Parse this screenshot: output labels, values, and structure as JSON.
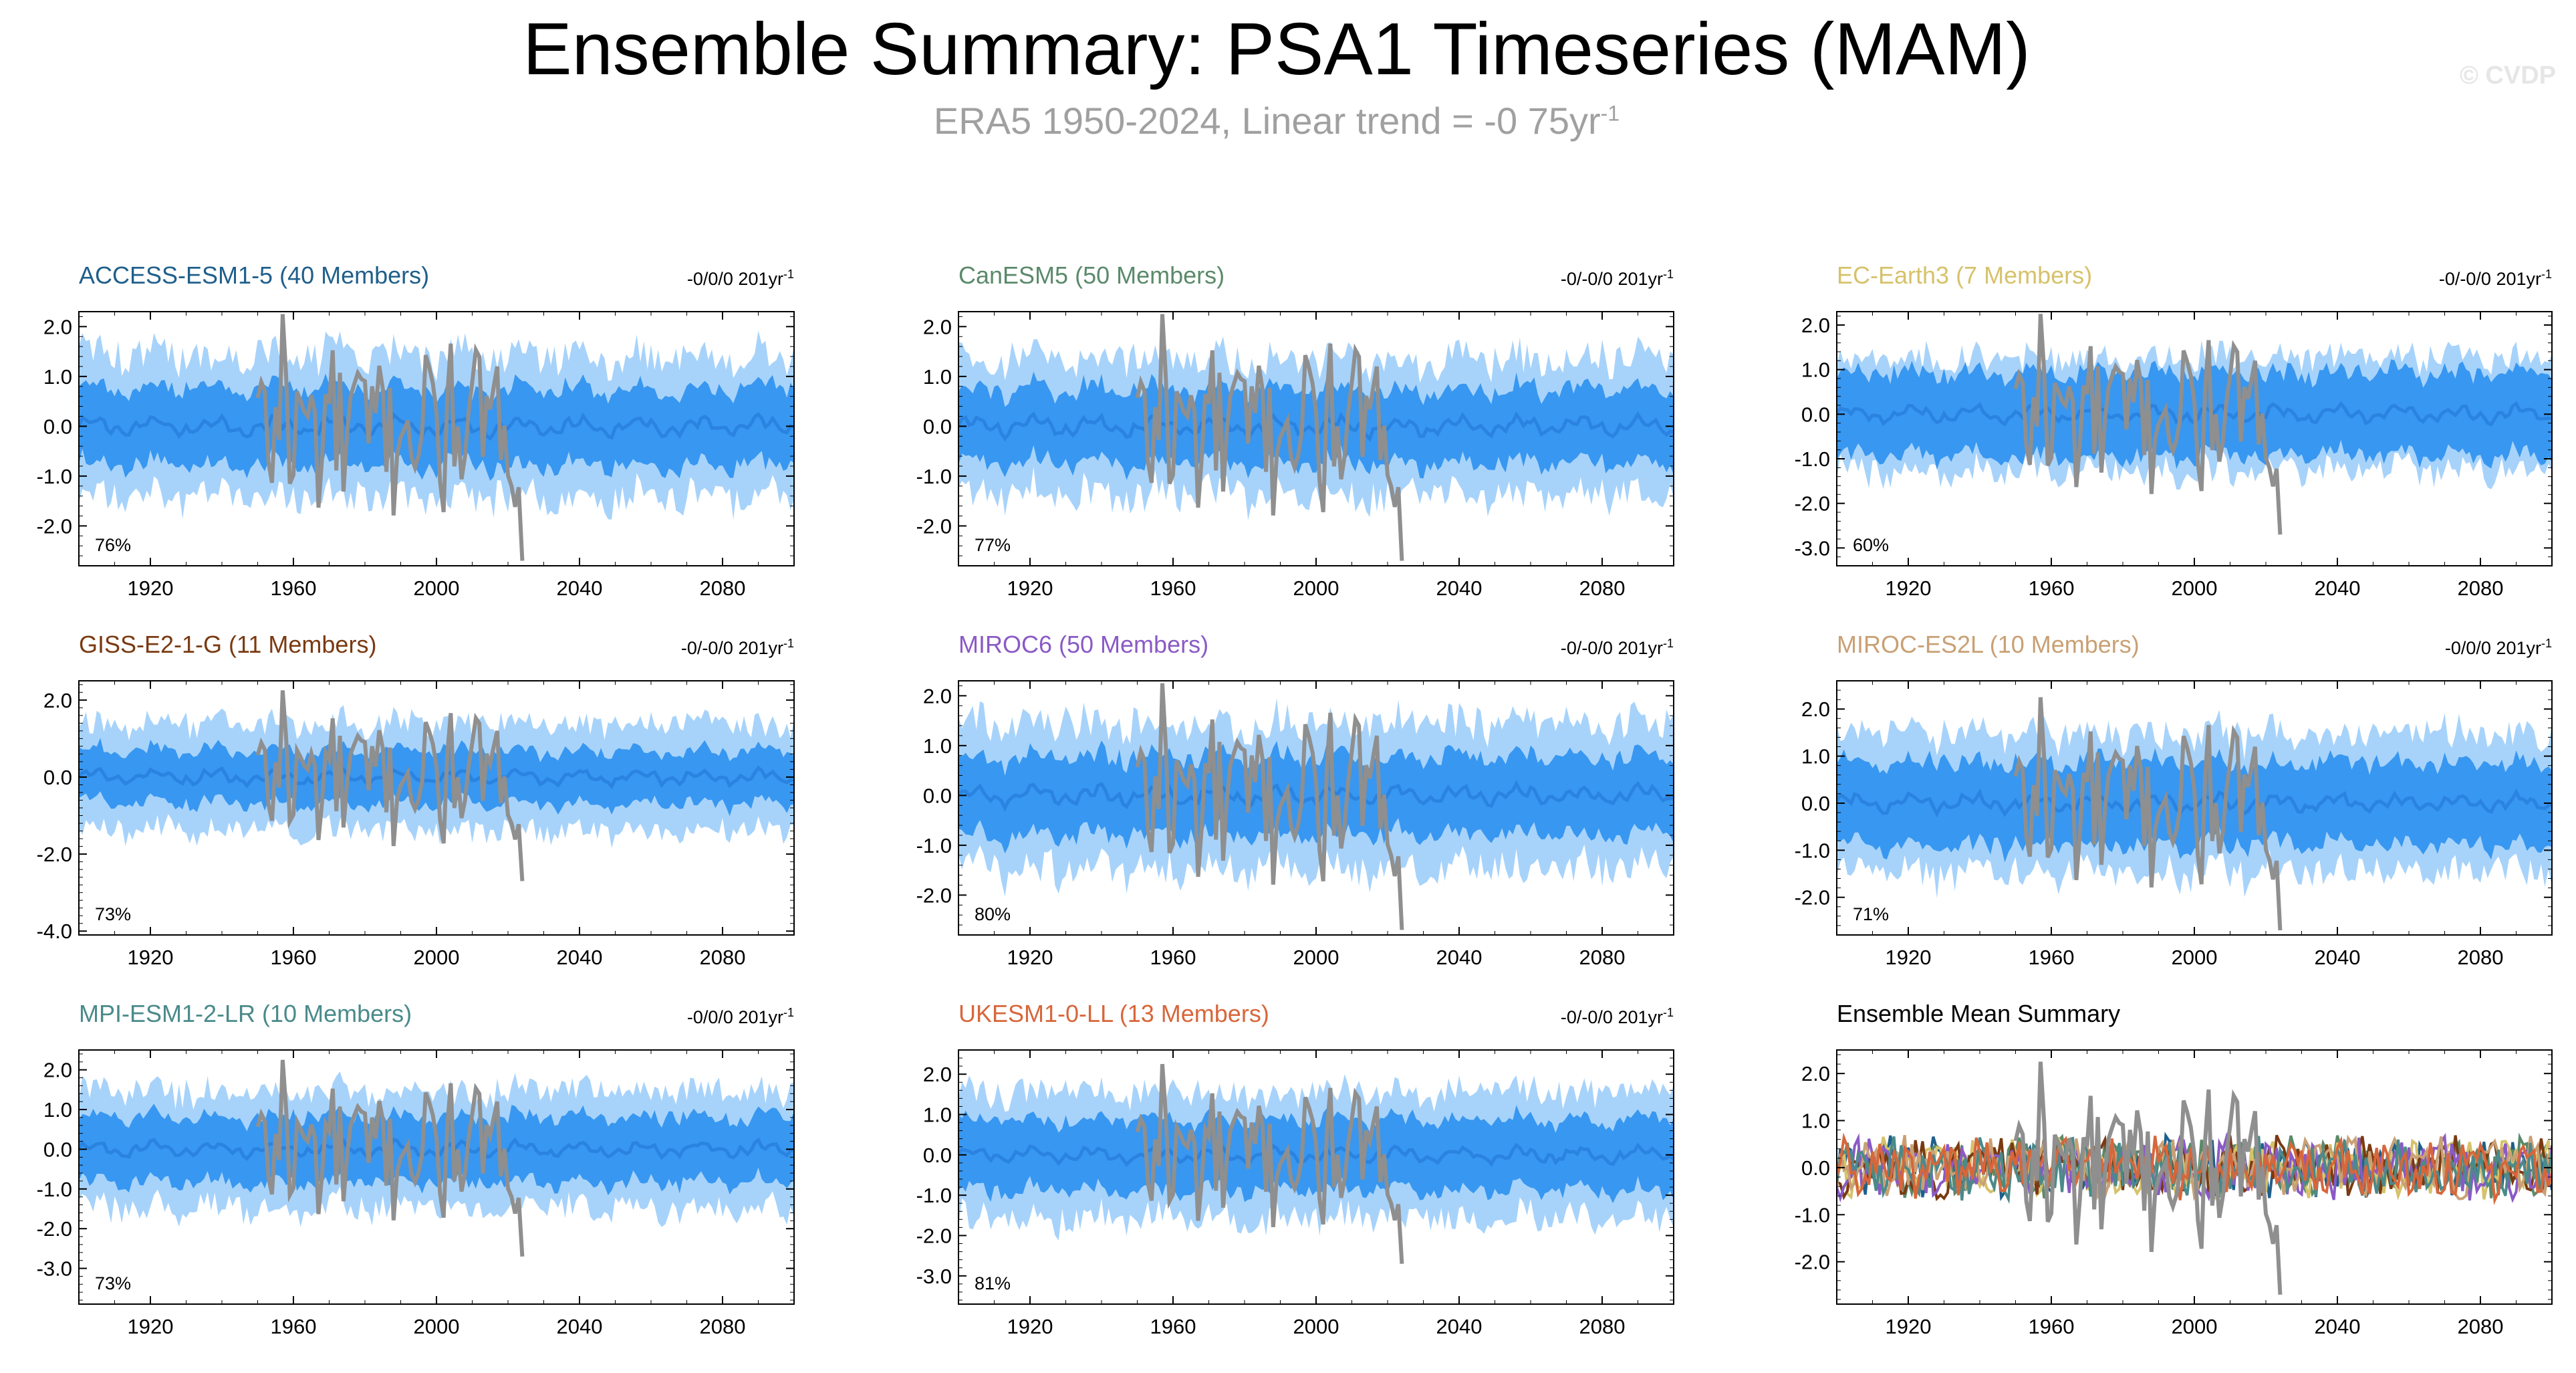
{
  "title": "Ensemble Summary: PSA1 Timeseries (MAM)",
  "subtitle": {
    "text": "ERA5 1950-2024, Linear trend = -0 75yr",
    "superscript": "-1"
  },
  "watermark": "© CVDP",
  "colors": {
    "band_outer": "#a7d3fb",
    "band_inner": "#3897f0",
    "ensemble_mean": "#2a83e0",
    "observations": "#8f8f8f"
  },
  "chart_data": [
    {
      "type": "area",
      "name": "ACCESS-ESM1-5 (40 Members)",
      "title_color": "#1f5f8b",
      "trend": "-0/0/0 201yr",
      "trend_sup": "-1",
      "percent": "76%",
      "ylim": [
        -2.8,
        2.3
      ],
      "yticks": [
        "2.0",
        "1.0",
        "0.0",
        "-1.0",
        "-2.0"
      ],
      "ytick_values": [
        2,
        1,
        0,
        -1,
        -2
      ],
      "xlim": [
        1900,
        2100
      ],
      "xticks": [
        "1920",
        "1960",
        "2000",
        "2040",
        "2080"
      ],
      "xtick_values": [
        1920,
        1960,
        2000,
        2040,
        2080
      ],
      "outer_spread": 1.45,
      "inner_spread": 0.78,
      "obs_years": [
        1950,
        2024
      ],
      "obs_min": -2.7,
      "obs_max": 2.25
    },
    {
      "type": "area",
      "name": "CanESM5 (50 Members)",
      "title_color": "#5a8a6a",
      "trend": "-0/-0/0 201yr",
      "trend_sup": "-1",
      "percent": "77%",
      "ylim": [
        -2.8,
        2.3
      ],
      "yticks": [
        "2.0",
        "1.0",
        "0.0",
        "-1.0",
        "-2.0"
      ],
      "ytick_values": [
        2,
        1,
        0,
        -1,
        -2
      ],
      "xlim": [
        1900,
        2100
      ],
      "xticks": [
        "1920",
        "1960",
        "2000",
        "2040",
        "2080"
      ],
      "xtick_values": [
        1920,
        1960,
        2000,
        2040,
        2080
      ],
      "outer_spread": 1.4,
      "inner_spread": 0.75,
      "obs_years": [
        1950,
        2024
      ],
      "obs_min": -2.7,
      "obs_max": 2.25
    },
    {
      "type": "area",
      "name": "EC-Earth3 (7 Members)",
      "title_color": "#d6c26a",
      "trend": "-0/-0/0 201yr",
      "trend_sup": "-1",
      "percent": "60%",
      "ylim": [
        -3.4,
        2.3
      ],
      "yticks": [
        "2.0",
        "1.0",
        "0.0",
        "-1.0",
        "-2.0",
        "-3.0"
      ],
      "ytick_values": [
        2,
        1,
        0,
        -1,
        -2,
        -3
      ],
      "xlim": [
        1900,
        2100
      ],
      "xticks": [
        "1920",
        "1960",
        "2000",
        "2040",
        "2080"
      ],
      "xtick_values": [
        1920,
        1960,
        2000,
        2040,
        2080
      ],
      "outer_spread": 1.3,
      "inner_spread": 0.95,
      "obs_years": [
        1950,
        2024
      ],
      "obs_min": -2.7,
      "obs_max": 2.25
    },
    {
      "type": "area",
      "name": "GISS-E2-1-G (11 Members)",
      "title_color": "#7a3a12",
      "trend": "-0/-0/0 201yr",
      "trend_sup": "-1",
      "percent": "73%",
      "ylim": [
        -4.1,
        2.5
      ],
      "yticks": [
        "2.0",
        "0.0",
        "-2.0",
        "-4.0"
      ],
      "ytick_values": [
        2,
        0,
        -2,
        -4
      ],
      "xlim": [
        1900,
        2100
      ],
      "xticks": [
        "1920",
        "1960",
        "2000",
        "2040",
        "2080"
      ],
      "xtick_values": [
        1920,
        1960,
        2000,
        2040,
        2080
      ],
      "outer_spread": 1.4,
      "inner_spread": 0.7,
      "obs_years": [
        1950,
        2024
      ],
      "obs_min": -2.7,
      "obs_max": 2.25
    },
    {
      "type": "area",
      "name": "MIROC6 (50 Members)",
      "title_color": "#8a5ac6",
      "trend": "-0/-0/0 201yr",
      "trend_sup": "-1",
      "percent": "80%",
      "ylim": [
        -2.8,
        2.3
      ],
      "yticks": [
        "2.0",
        "1.0",
        "0.0",
        "-1.0",
        "-2.0"
      ],
      "ytick_values": [
        2,
        1,
        0,
        -1,
        -2
      ],
      "xlim": [
        1900,
        2100
      ],
      "xticks": [
        "1920",
        "1960",
        "2000",
        "2040",
        "2080"
      ],
      "xtick_values": [
        1920,
        1960,
        2000,
        2040,
        2080
      ],
      "outer_spread": 1.5,
      "inner_spread": 0.8,
      "obs_years": [
        1950,
        2024
      ],
      "obs_min": -2.7,
      "obs_max": 2.25
    },
    {
      "type": "area",
      "name": "MIROC-ES2L (10 Members)",
      "title_color": "#c9a074",
      "trend": "-0/0/0 201yr",
      "trend_sup": "-1",
      "percent": "71%",
      "ylim": [
        -2.8,
        2.6
      ],
      "yticks": [
        "2.0",
        "1.0",
        "0.0",
        "-1.0",
        "-2.0"
      ],
      "ytick_values": [
        2,
        1,
        0,
        -1,
        -2
      ],
      "xlim": [
        1900,
        2100
      ],
      "xticks": [
        "1920",
        "1960",
        "2000",
        "2040",
        "2080"
      ],
      "xtick_values": [
        1920,
        1960,
        2000,
        2040,
        2080
      ],
      "outer_spread": 1.5,
      "inner_spread": 0.9,
      "obs_years": [
        1950,
        2024
      ],
      "obs_min": -2.7,
      "obs_max": 2.25
    },
    {
      "type": "area",
      "name": "MPI-ESM1-2-LR (10 Members)",
      "title_color": "#4a8a8a",
      "trend": "-0/0/0 201yr",
      "trend_sup": "-1",
      "percent": "73%",
      "ylim": [
        -3.9,
        2.5
      ],
      "yticks": [
        "2.0",
        "1.0",
        "0.0",
        "-1.0",
        "-2.0",
        "-3.0"
      ],
      "ytick_values": [
        2,
        1,
        0,
        -1,
        -2,
        -3
      ],
      "xlim": [
        1900,
        2100
      ],
      "xticks": [
        "1920",
        "1960",
        "2000",
        "2040",
        "2080"
      ],
      "xtick_values": [
        1920,
        1960,
        2000,
        2040,
        2080
      ],
      "outer_spread": 1.5,
      "inner_spread": 0.85,
      "obs_years": [
        1950,
        2024
      ],
      "obs_min": -2.7,
      "obs_max": 2.25
    },
    {
      "type": "area",
      "name": "UKESM1-0-LL (13 Members)",
      "title_color": "#d8663a",
      "trend": "-0/-0/0 201yr",
      "trend_sup": "-1",
      "percent": "81%",
      "ylim": [
        -3.7,
        2.6
      ],
      "yticks": [
        "2.0",
        "1.0",
        "0.0",
        "-1.0",
        "-2.0",
        "-3.0"
      ],
      "ytick_values": [
        2,
        1,
        0,
        -1,
        -2,
        -3
      ],
      "xlim": [
        1900,
        2100
      ],
      "xticks": [
        "1920",
        "1960",
        "2000",
        "2040",
        "2080"
      ],
      "xtick_values": [
        1920,
        1960,
        2000,
        2040,
        2080
      ],
      "outer_spread": 1.6,
      "inner_spread": 0.9,
      "obs_years": [
        1950,
        2024
      ],
      "obs_min": -2.7,
      "obs_max": 2.25
    },
    {
      "type": "line",
      "name": "Ensemble Mean Summary",
      "title_color": "#000000",
      "percent": "",
      "ylim": [
        -2.9,
        2.5
      ],
      "yticks": [
        "2.0",
        "1.0",
        "0.0",
        "-1.0",
        "-2.0"
      ],
      "ytick_values": [
        2,
        1,
        0,
        -1,
        -2
      ],
      "xlim": [
        1900,
        2100
      ],
      "xticks": [
        "1920",
        "1960",
        "2000",
        "2040",
        "2080"
      ],
      "xtick_values": [
        1920,
        1960,
        2000,
        2040,
        2080
      ],
      "series_colors": [
        "#1f5f8b",
        "#5a8a6a",
        "#d6c26a",
        "#7a3a12",
        "#8a5ac6",
        "#c9a074",
        "#4a8a8a",
        "#d8663a"
      ],
      "obs_years": [
        1950,
        2024
      ],
      "obs_min": -2.7,
      "obs_max": 2.25
    }
  ]
}
